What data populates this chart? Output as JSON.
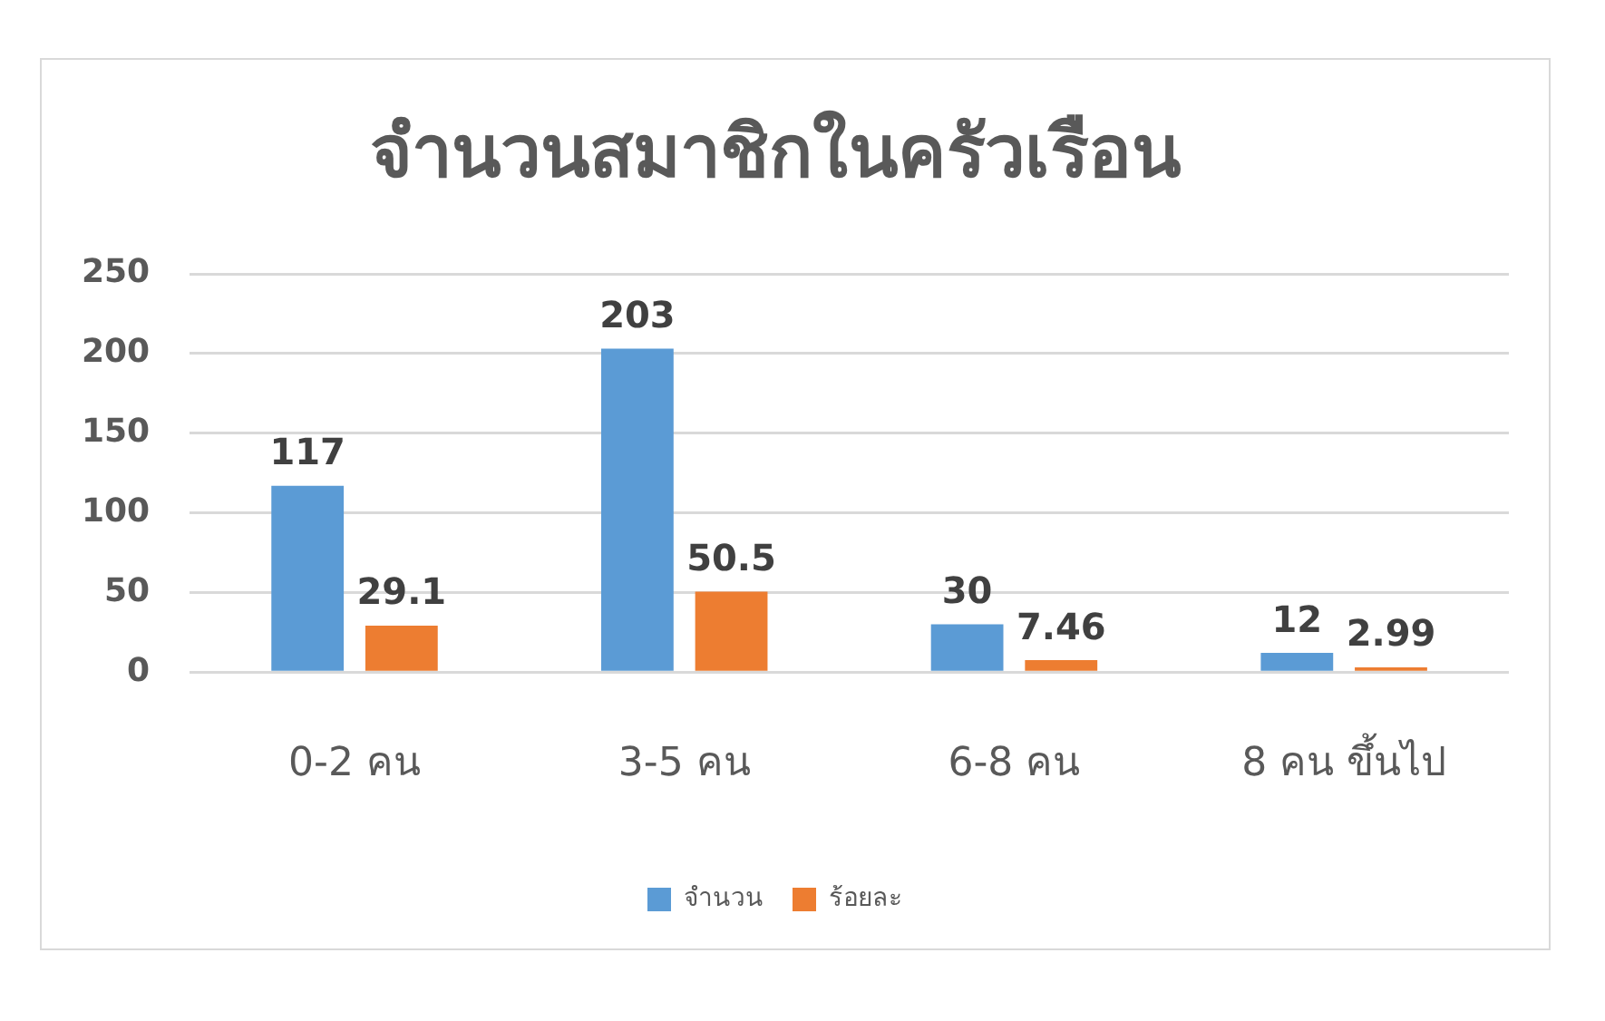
{
  "chart_data": {
    "type": "bar",
    "title": "จำนวนสมาชิกในครัวเรือน",
    "categories": [
      "0-2 คน",
      "3-5 คน",
      "6-8 คน",
      "8 คน ขึ้นไป"
    ],
    "series": [
      {
        "name": "จำนวน",
        "color": "#5b9bd5",
        "values": [
          117,
          203,
          30,
          12
        ]
      },
      {
        "name": "ร้อยละ",
        "color": "#ed7d31",
        "values": [
          29.1,
          50.5,
          7.46,
          2.99
        ]
      }
    ],
    "ylim": [
      0,
      250
    ],
    "yticks": [
      0,
      50,
      100,
      150,
      200,
      250
    ],
    "grid": "y",
    "legend": "bottom",
    "data_labels": true
  }
}
